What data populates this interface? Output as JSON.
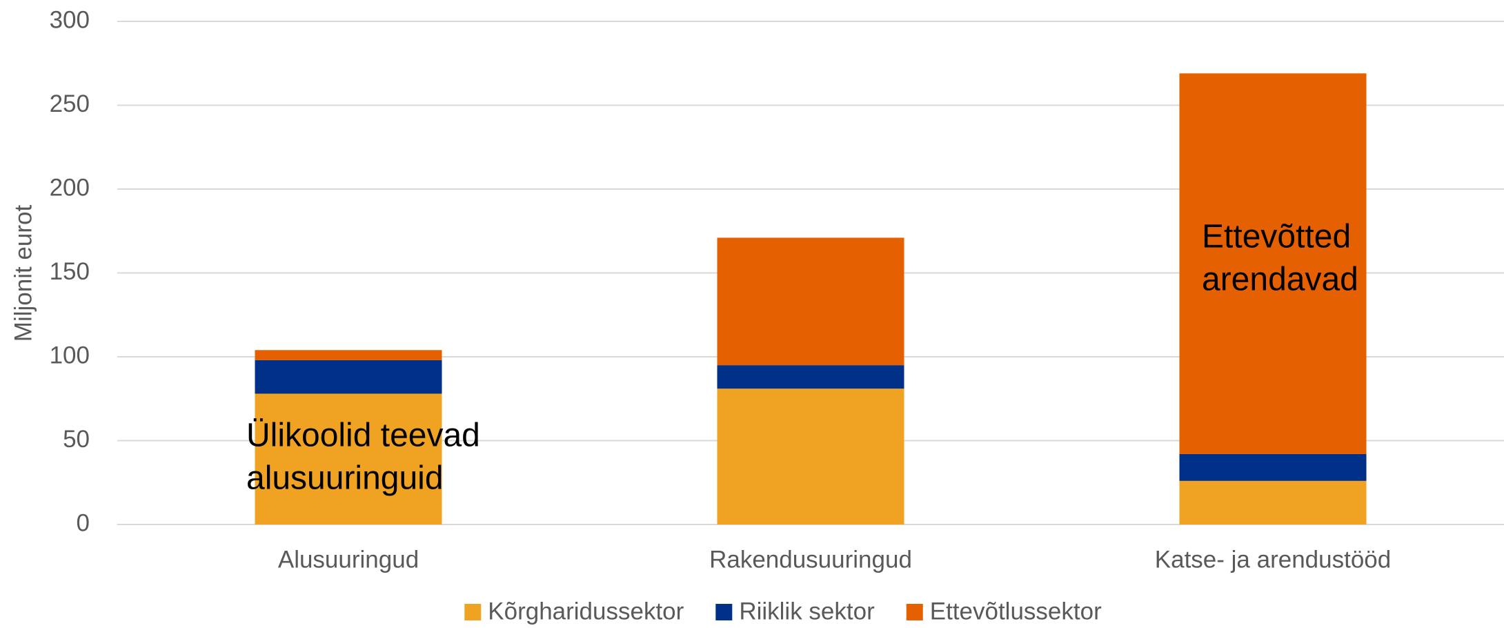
{
  "chart_data": {
    "type": "stacked_bar",
    "y_axis_label": "Miljonit eurot",
    "categories": [
      "Alusuuringud",
      "Rakendusuuringud",
      "Katse- ja arendustööd"
    ],
    "series": [
      {
        "name": "Kõrgharidussektor",
        "color": "#f0a323",
        "values": [
          78,
          81,
          26
        ]
      },
      {
        "name": "Riiklik sektor",
        "color": "#003087",
        "values": [
          20,
          14,
          16
        ]
      },
      {
        "name": "Ettevõtlussektor",
        "color": "#e56000",
        "values": [
          6,
          76,
          227
        ]
      }
    ],
    "ylim": [
      0,
      300
    ],
    "yticks": [
      0,
      50,
      100,
      150,
      200,
      250,
      300
    ],
    "grid": true,
    "annotations": [
      {
        "lines": [
          "Ülikoolid teevad",
          "alusuuringuid"
        ]
      },
      {
        "lines": [
          "Ettevõtted",
          "arendavad"
        ]
      }
    ]
  }
}
